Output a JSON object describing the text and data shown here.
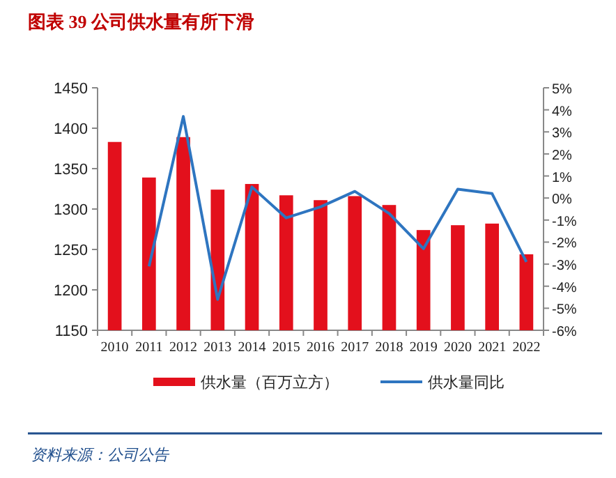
{
  "chart_data": {
    "type": "bar",
    "title": "图表 39   公司供水量有所下滑",
    "categories": [
      "2010",
      "2011",
      "2012",
      "2013",
      "2014",
      "2015",
      "2016",
      "2017",
      "2018",
      "2019",
      "2020",
      "2021",
      "2022"
    ],
    "series": [
      {
        "name": "供水量（百万立方）",
        "color": "#e3101c",
        "values": [
          1383,
          1339,
          1389,
          1324,
          1331,
          1317,
          1311,
          1316,
          1305,
          1274,
          1280,
          1282,
          1244
        ]
      },
      {
        "name": "供水量同比",
        "type": "line",
        "axis": "y2",
        "color": "#2e75c0",
        "values": [
          null,
          -3.1,
          3.7,
          -4.6,
          0.5,
          -0.9,
          -0.4,
          0.3,
          -0.7,
          -2.3,
          0.4,
          0.2,
          -2.9
        ]
      }
    ],
    "ylim": [
      1150,
      1450
    ],
    "yticks": [
      1150,
      1200,
      1250,
      1300,
      1350,
      1400,
      1450
    ],
    "y2lim": [
      -6,
      5
    ],
    "y2ticks": [
      {
        "value": -6,
        "label": "-6%"
      },
      {
        "value": -5,
        "label": "-5%"
      },
      {
        "value": -4,
        "label": "-4%"
      },
      {
        "value": -3,
        "label": "-3%"
      },
      {
        "value": -2,
        "label": "-2%"
      },
      {
        "value": -1,
        "label": "-1%"
      },
      {
        "value": 0,
        "label": "0%"
      },
      {
        "value": 1,
        "label": "1%"
      },
      {
        "value": 2,
        "label": "2%"
      },
      {
        "value": 3,
        "label": "3%"
      },
      {
        "value": 4,
        "label": "4%"
      },
      {
        "value": 5,
        "label": "5%"
      }
    ],
    "grid": false,
    "legend": "bottom",
    "marker": "none",
    "line_style": "solid",
    "annotations": [
      "资料来源：公司公告"
    ]
  }
}
